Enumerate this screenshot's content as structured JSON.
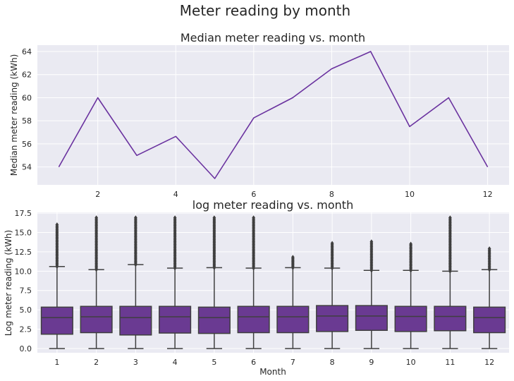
{
  "figure": {
    "title": "Meter reading by month"
  },
  "colors": {
    "panel_bg": "#eaeaf2",
    "grid": "#ffffff",
    "series": "#6a329f",
    "box_fill": "#6a3a92",
    "box_edge": "#3f3f3f"
  },
  "chart_data": [
    {
      "type": "line",
      "title": "Median meter reading vs. month",
      "xlabel": "",
      "ylabel": "Median meter reading (kWh)",
      "x": [
        1,
        2,
        3,
        4,
        5,
        6,
        7,
        8,
        9,
        10,
        11,
        12
      ],
      "y": [
        54.0,
        60.0,
        55.0,
        56.65,
        53.0,
        58.25,
        60.0,
        62.5,
        64.0,
        57.5,
        60.0,
        54.0
      ],
      "xlim": [
        0.45,
        12.55
      ],
      "ylim": [
        52.45,
        64.55
      ],
      "xticks": [
        2,
        4,
        6,
        8,
        10,
        12
      ],
      "yticks": [
        54,
        56,
        58,
        60,
        62,
        64
      ],
      "grid": true
    },
    {
      "type": "box",
      "title": "log meter reading vs. month",
      "xlabel": "Month",
      "ylabel": "Log meter reading (kWh)",
      "categories": [
        "1",
        "2",
        "3",
        "4",
        "5",
        "6",
        "7",
        "8",
        "9",
        "10",
        "11",
        "12"
      ],
      "ylim": [
        -0.55,
        17.6
      ],
      "yticks": [
        0.0,
        2.5,
        5.0,
        7.5,
        10.0,
        12.5,
        15.0,
        17.5
      ],
      "ytick_labels": [
        "0.0",
        "2.5",
        "5.0",
        "7.5",
        "10.0",
        "12.5",
        "15.0",
        "17.5"
      ],
      "grid": true,
      "boxes": [
        {
          "whislo": 0.0,
          "q1": 1.85,
          "med": 4.0,
          "q3": 5.35,
          "whishi": 10.6,
          "fliers_min": 10.6,
          "fliers_max": 16.0
        },
        {
          "whislo": 0.0,
          "q1": 2.05,
          "med": 4.1,
          "q3": 5.45,
          "whishi": 10.2,
          "fliers_min": 10.2,
          "fliers_max": 16.9
        },
        {
          "whislo": 0.0,
          "q1": 1.75,
          "med": 4.0,
          "q3": 5.45,
          "whishi": 10.85,
          "fliers_min": 10.85,
          "fliers_max": 16.9
        },
        {
          "whislo": 0.0,
          "q1": 2.0,
          "med": 4.1,
          "q3": 5.45,
          "whishi": 10.4,
          "fliers_min": 10.4,
          "fliers_max": 16.9
        },
        {
          "whislo": 0.0,
          "q1": 1.95,
          "med": 4.0,
          "q3": 5.35,
          "whishi": 10.45,
          "fliers_min": 10.45,
          "fliers_max": 16.9
        },
        {
          "whislo": 0.0,
          "q1": 2.05,
          "med": 4.1,
          "q3": 5.45,
          "whishi": 10.4,
          "fliers_min": 10.4,
          "fliers_max": 16.9
        },
        {
          "whislo": 0.0,
          "q1": 2.05,
          "med": 4.1,
          "q3": 5.45,
          "whishi": 10.45,
          "fliers_min": 10.45,
          "fliers_max": 11.8
        },
        {
          "whislo": 0.0,
          "q1": 2.2,
          "med": 4.2,
          "q3": 5.55,
          "whishi": 10.4,
          "fliers_min": 10.4,
          "fliers_max": 13.6
        },
        {
          "whislo": 0.0,
          "q1": 2.35,
          "med": 4.2,
          "q3": 5.55,
          "whishi": 10.1,
          "fliers_min": 10.1,
          "fliers_max": 13.8
        },
        {
          "whislo": 0.0,
          "q1": 2.2,
          "med": 4.15,
          "q3": 5.45,
          "whishi": 10.1,
          "fliers_min": 10.1,
          "fliers_max": 13.5
        },
        {
          "whislo": 0.0,
          "q1": 2.3,
          "med": 4.15,
          "q3": 5.45,
          "whishi": 10.0,
          "fliers_min": 10.0,
          "fliers_max": 16.9
        },
        {
          "whislo": 0.0,
          "q1": 2.05,
          "med": 4.0,
          "q3": 5.35,
          "whishi": 10.2,
          "fliers_min": 10.2,
          "fliers_max": 12.9
        }
      ]
    }
  ]
}
